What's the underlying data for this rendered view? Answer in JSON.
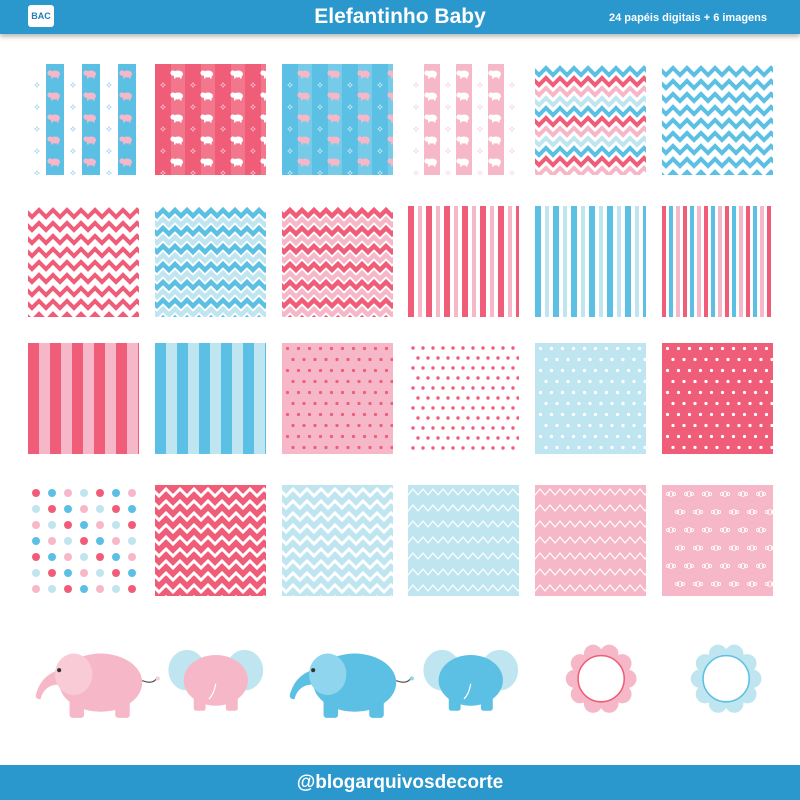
{
  "header": {
    "logo_text": "BAC",
    "title": "Elefantinho Baby",
    "subtitle": "24 papéis digitais + 6 imagens"
  },
  "colors": {
    "brand_blue": "#2a97cd",
    "pink": "#ef5d78",
    "light_pink": "#f6b8c8",
    "blue": "#5cc0e4",
    "light_blue": "#bfe6f0"
  },
  "papers": [
    "elephant-stripes-light",
    "elephant-stripes-pink",
    "elephant-stripes-blue",
    "elephant-stripes-soft",
    "chevron-tricolor",
    "chevron-blue",
    "chevron-pink",
    "chevron-blue-dense",
    "chevron-pink-dense",
    "stripes-pink-thin",
    "stripes-blue-thin",
    "stripes-mixed-thin",
    "stripes-pink-wide",
    "stripes-blue-wide",
    "dots-pink-light",
    "dots-white-pink",
    "dots-white-blue",
    "dots-white-on-pink",
    "dots-colorful",
    "chevron-white-on-pink",
    "chevron-white-on-blue",
    "zigzag-light-blue",
    "zigzag-light-pink",
    "flowers-pink"
  ],
  "images": [
    "elephant-pink-side",
    "elephant-pink-back",
    "elephant-blue-side",
    "elephant-blue-back",
    "frame-pink-scalloped",
    "frame-blue-scalloped"
  ],
  "footer": {
    "handle": "@blogarquivosdecorte"
  }
}
